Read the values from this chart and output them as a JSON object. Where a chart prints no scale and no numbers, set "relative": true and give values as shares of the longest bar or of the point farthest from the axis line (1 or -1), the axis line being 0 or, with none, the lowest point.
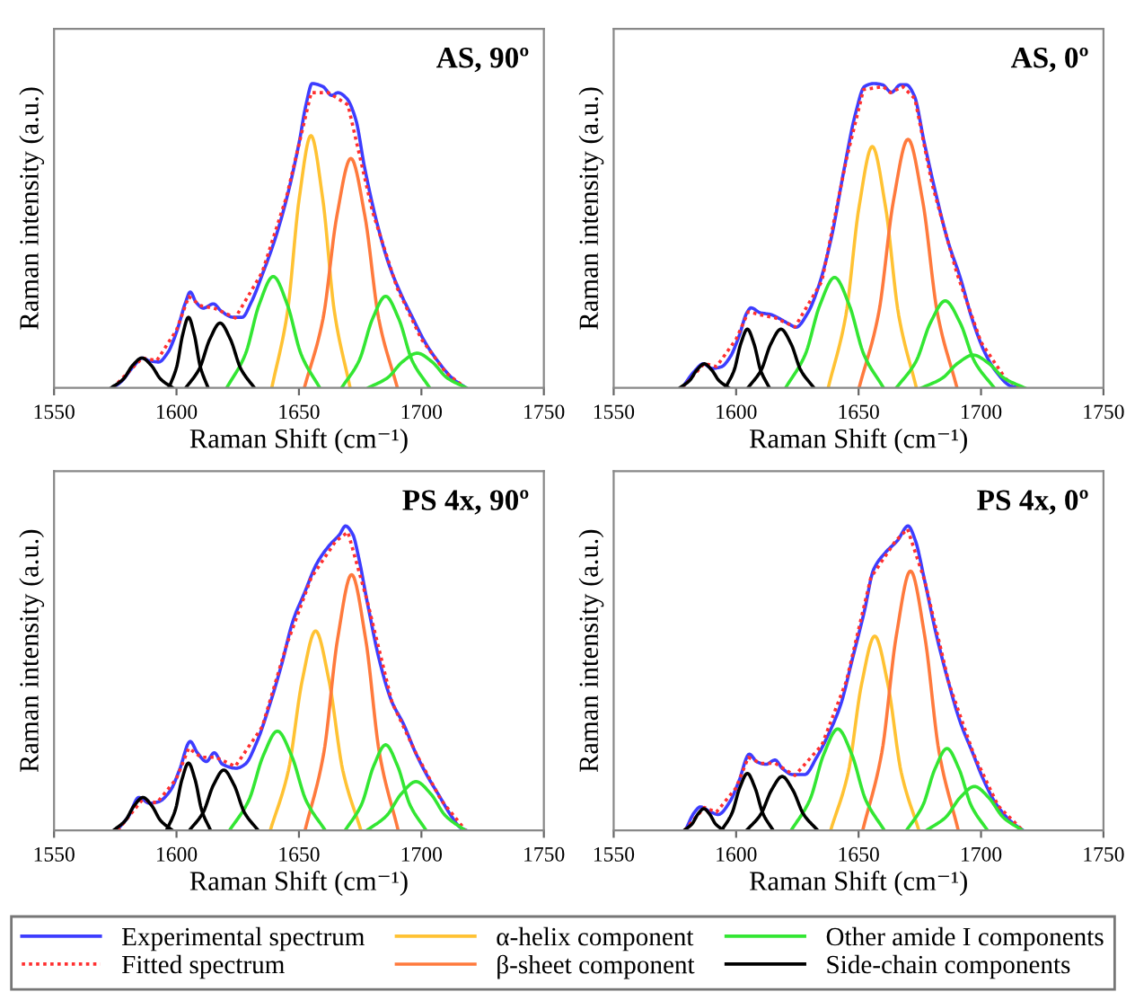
{
  "chart_data": [
    {
      "type": "line",
      "title": "AS, 90º",
      "xlabel": "Raman Shift (cm⁻¹)",
      "ylabel": "Raman intensity (a.u.)",
      "xlim": [
        1550,
        1750
      ],
      "xticks": [
        1550,
        1600,
        1650,
        1700,
        1750
      ],
      "relative": true,
      "legend": "bottom",
      "series": [
        {
          "name": "Experimental spectrum",
          "color": "#3d3dff",
          "x": [
            1573.7,
            1576.8,
            1582.9,
            1585.9,
            1589,
            1592.7,
            1596.3,
            1600,
            1603.7,
            1605.6,
            1608,
            1611,
            1615.1,
            1618.3,
            1623.2,
            1626.8,
            1630.5,
            1635.4,
            1640.2,
            1645.1,
            1650,
            1652.9,
            1655.4,
            1659.8,
            1663.4,
            1665.9,
            1669.5,
            1673.2,
            1676.8,
            1681.7,
            1686.6,
            1691.5,
            1696.3,
            1701.2,
            1706.1,
            1713.4,
            1718.3
          ],
          "values": [
            0,
            0.016,
            0.075,
            0.098,
            0.089,
            0.085,
            0.114,
            0.183,
            0.281,
            0.315,
            0.281,
            0.262,
            0.276,
            0.252,
            0.232,
            0.232,
            0.281,
            0.38,
            0.488,
            0.626,
            0.803,
            0.931,
            1,
            0.99,
            0.961,
            0.97,
            0.951,
            0.882,
            0.724,
            0.547,
            0.409,
            0.311,
            0.232,
            0.154,
            0.094,
            0.026,
            0
          ]
        },
        {
          "name": "Fitted spectrum",
          "color": "#ff3030",
          "line_style": "dotted",
          "x": [
            1574,
            1586,
            1592,
            1600,
            1605,
            1610,
            1616,
            1624,
            1635,
            1645,
            1655,
            1662,
            1670,
            1680,
            1690,
            1700,
            1710,
            1718
          ],
          "values": [
            0,
            0.098,
            0.09,
            0.19,
            0.3,
            0.27,
            0.26,
            0.23,
            0.38,
            0.63,
            0.97,
            0.97,
            0.93,
            0.58,
            0.33,
            0.16,
            0.05,
            0
          ]
        },
        {
          "name": "α-helix component",
          "color": "#ffc233",
          "x": [
            1638.9,
            1645.3,
            1650.1,
            1654.9,
            1659.7,
            1664.5,
            1670.9
          ],
          "values": [
            0,
            0.249,
            0.622,
            0.829,
            0.622,
            0.249,
            0
          ]
        },
        {
          "name": "β-sheet component",
          "color": "#ff7a3d",
          "x": [
            1652.2,
            1659.8,
            1665.5,
            1671.2,
            1676.9,
            1682.6,
            1690.2
          ],
          "values": [
            0,
            0.226,
            0.566,
            0.754,
            0.566,
            0.226,
            0
          ]
        },
        {
          "name": "Other amide I components",
          "color": "#33e633",
          "x": [
            1620.5,
            1628.1,
            1633.8,
            1639.5,
            1645.2,
            1650.9,
            1658.5
          ],
          "values": [
            0,
            0.11,
            0.275,
            0.366,
            0.275,
            0.11,
            0
          ]
        },
        {
          "color": "#33e633",
          "x": [
            1667.4,
            1674.6,
            1680,
            1685.4,
            1690.8,
            1696.2,
            1703.4
          ],
          "values": [
            0,
            0.09,
            0.226,
            0.301,
            0.226,
            0.09,
            0
          ]
        },
        {
          "color": "#33e633",
          "x": [
            1678.3,
            1686.3,
            1692.3,
            1698.3,
            1704.3,
            1710.3,
            1718.3
          ],
          "values": [
            0,
            0.034,
            0.086,
            0.114,
            0.086,
            0.034,
            0
          ]
        },
        {
          "name": "Side-chain components",
          "color": "#000000",
          "x": [
            1573.3,
            1578.3,
            1582.1,
            1585.9,
            1589.7,
            1593.5,
            1598.5
          ],
          "values": [
            0,
            0.029,
            0.074,
            0.098,
            0.074,
            0.029,
            0
          ]
        },
        {
          "color": "#000000",
          "x": [
            1596.9,
            1600.1,
            1602.5,
            1604.9,
            1607.3,
            1609.7,
            1612.9
          ],
          "values": [
            0,
            0.07,
            0.174,
            0.232,
            0.174,
            0.07,
            0
          ]
        },
        {
          "color": "#000000",
          "x": [
            1603.8,
            1609.4,
            1613.6,
            1617.8,
            1622,
            1626.2,
            1631.8
          ],
          "values": [
            0,
            0.064,
            0.16,
            0.213,
            0.16,
            0.064,
            0
          ]
        }
      ]
    },
    {
      "type": "line",
      "title": "AS, 0º",
      "xlabel": "Raman Shift (cm⁻¹)",
      "ylabel": "Raman intensity (a.u.)",
      "xlim": [
        1550,
        1750
      ],
      "xticks": [
        1550,
        1600,
        1650,
        1700,
        1750
      ],
      "relative": true,
      "legend": "bottom",
      "series": [
        {
          "name": "Experimental spectrum",
          "color": "#3d3dff",
          "x": [
            1578,
            1582.9,
            1586.6,
            1590.2,
            1593.9,
            1597.6,
            1601.2,
            1604.4,
            1606.1,
            1609.8,
            1614.1,
            1617.6,
            1622,
            1624.4,
            1629.3,
            1634.1,
            1639,
            1643.9,
            1648.8,
            1652.4,
            1656.1,
            1659.8,
            1663.4,
            1667.1,
            1669.5,
            1672.7,
            1676.8,
            1681.7,
            1686.6,
            1691.5,
            1696.3,
            1701.2,
            1706.1,
            1712.2,
            1715.9
          ],
          "values": [
            0,
            0.054,
            0.079,
            0.064,
            0.069,
            0.102,
            0.17,
            0.247,
            0.263,
            0.247,
            0.241,
            0.228,
            0.208,
            0.199,
            0.247,
            0.344,
            0.498,
            0.71,
            0.903,
            0.99,
            1,
            0.996,
            0.971,
            0.996,
            0.996,
            0.961,
            0.807,
            0.633,
            0.479,
            0.363,
            0.228,
            0.122,
            0.054,
            0.006,
            0
          ]
        },
        {
          "name": "Fitted spectrum",
          "color": "#ff3030",
          "line_style": "dotted",
          "x": [
            1578,
            1587,
            1592,
            1600,
            1605,
            1610,
            1616,
            1624,
            1635,
            1645,
            1652,
            1660,
            1663,
            1668,
            1673,
            1680,
            1690,
            1700,
            1710,
            1716
          ],
          "values": [
            0,
            0.08,
            0.07,
            0.16,
            0.25,
            0.24,
            0.23,
            0.2,
            0.35,
            0.75,
            0.98,
            0.99,
            0.97,
            0.99,
            0.95,
            0.67,
            0.38,
            0.15,
            0.03,
            0
          ]
        },
        {
          "name": "α-helix component",
          "color": "#ffc233",
          "x": [
            1637.6,
            1644.8,
            1650.2,
            1655.6,
            1661,
            1666.4,
            1673.6
          ],
          "values": [
            0,
            0.238,
            0.595,
            0.793,
            0.595,
            0.238,
            0
          ]
        },
        {
          "name": "β-sheet component",
          "color": "#ff7a3d",
          "x": [
            1650.2,
            1658.2,
            1664.2,
            1670.2,
            1676.2,
            1682.2,
            1690.2
          ],
          "values": [
            0,
            0.245,
            0.613,
            0.817,
            0.613,
            0.245,
            0
          ]
        },
        {
          "name": "Other amide I components",
          "color": "#33e633",
          "x": [
            1620.2,
            1628.2,
            1634.2,
            1640.2,
            1646.2,
            1652.2,
            1660.2
          ],
          "values": [
            0,
            0.109,
            0.272,
            0.363,
            0.272,
            0.109,
            0
          ]
        },
        {
          "color": "#33e633",
          "x": [
            1665.4,
            1673.4,
            1679.4,
            1685.4,
            1691.4,
            1697.4,
            1705.4
          ],
          "values": [
            0,
            0.086,
            0.215,
            0.286,
            0.215,
            0.086,
            0
          ]
        },
        {
          "color": "#33e633",
          "x": [
            1675.8,
            1684.2,
            1690.5,
            1696.8,
            1703.1,
            1709.4,
            1717.8
          ],
          "values": [
            0,
            0.032,
            0.081,
            0.108,
            0.081,
            0.032,
            0
          ]
        },
        {
          "name": "Side-chain components",
          "color": "#000000",
          "x": [
            1577,
            1581,
            1584,
            1587,
            1590,
            1593,
            1597
          ],
          "values": [
            0,
            0.024,
            0.059,
            0.079,
            0.059,
            0.024,
            0
          ]
        },
        {
          "color": "#000000",
          "x": [
            1595.6,
            1599.2,
            1601.9,
            1604.6,
            1607.3,
            1610,
            1613.6
          ],
          "values": [
            0,
            0.058,
            0.145,
            0.193,
            0.145,
            0.058,
            0
          ]
        },
        {
          "color": "#000000",
          "x": [
            1604.8,
            1610.2,
            1614.2,
            1618.3,
            1622.4,
            1626.4,
            1631.8
          ],
          "values": [
            0,
            0.058,
            0.145,
            0.193,
            0.145,
            0.058,
            0
          ]
        }
      ]
    },
    {
      "type": "line",
      "title": "PS 4x, 90º",
      "xlabel": "Raman Shift (cm⁻¹)",
      "ylabel": "Raman intensity (a.u.)",
      "xlim": [
        1550,
        1750
      ],
      "xticks": [
        1550,
        1600,
        1650,
        1700,
        1750
      ],
      "relative": true,
      "legend": "bottom",
      "series": [
        {
          "name": "Experimental spectrum",
          "color": "#3d3dff",
          "x": [
            1575.6,
            1580.5,
            1584.6,
            1589,
            1592.7,
            1597.6,
            1601.2,
            1605.6,
            1608.5,
            1612.2,
            1615.4,
            1618.8,
            1624.4,
            1628,
            1632.9,
            1637.8,
            1642.7,
            1647.6,
            1652.4,
            1657.3,
            1662.2,
            1666.6,
            1669,
            1672,
            1674.4,
            1678,
            1682.9,
            1687.8,
            1692.7,
            1697.6,
            1702.4,
            1707.3,
            1712.2,
            1715.9,
            1718.3
          ],
          "values": [
            0,
            0.047,
            0.108,
            0.089,
            0.094,
            0.132,
            0.198,
            0.292,
            0.255,
            0.226,
            0.255,
            0.217,
            0.204,
            0.217,
            0.292,
            0.406,
            0.538,
            0.689,
            0.783,
            0.877,
            0.934,
            0.972,
            1,
            0.972,
            0.896,
            0.745,
            0.557,
            0.425,
            0.349,
            0.255,
            0.179,
            0.113,
            0.047,
            0.009,
            0
          ]
        },
        {
          "name": "Fitted spectrum",
          "color": "#ff3030",
          "line_style": "dotted",
          "x": [
            1576,
            1586,
            1592,
            1600,
            1605,
            1610,
            1616,
            1624,
            1635,
            1645,
            1655,
            1665,
            1670,
            1678,
            1688,
            1698,
            1708,
            1718
          ],
          "values": [
            0,
            0.1,
            0.09,
            0.17,
            0.27,
            0.24,
            0.24,
            0.21,
            0.34,
            0.61,
            0.83,
            0.95,
            0.98,
            0.75,
            0.42,
            0.25,
            0.1,
            0
          ]
        },
        {
          "name": "α-helix component",
          "color": "#ffc233",
          "x": [
            1638.3,
            1645.7,
            1651.3,
            1656.8,
            1662.3,
            1667.9,
            1675.3
          ],
          "values": [
            0,
            0.197,
            0.491,
            0.655,
            0.491,
            0.197,
            0
          ]
        },
        {
          "name": "β-sheet component",
          "color": "#ff7a3d",
          "x": [
            1652.5,
            1660.1,
            1665.8,
            1671.5,
            1677.2,
            1682.9,
            1690.5
          ],
          "values": [
            0,
            0.252,
            0.63,
            0.84,
            0.63,
            0.252,
            0
          ]
        },
        {
          "name": "Other amide I components",
          "color": "#33e633",
          "x": [
            1621.7,
            1629.5,
            1635.4,
            1641.2,
            1647,
            1652.9,
            1660.7
          ],
          "values": [
            0,
            0.098,
            0.245,
            0.326,
            0.245,
            0.098,
            0
          ]
        },
        {
          "color": "#33e633",
          "x": [
            1668.9,
            1675.5,
            1680.5,
            1685.4,
            1690.3,
            1695.3,
            1701.9
          ],
          "values": [
            0,
            0.084,
            0.211,
            0.281,
            0.211,
            0.084,
            0
          ]
        },
        {
          "color": "#33e633",
          "x": [
            1677.8,
            1685.8,
            1691.8,
            1697.8,
            1703.8,
            1709.8,
            1717.8
          ],
          "values": [
            0,
            0.048,
            0.12,
            0.16,
            0.12,
            0.048,
            0
          ]
        },
        {
          "name": "Side-chain components",
          "color": "#000000",
          "x": [
            1574.3,
            1579.1,
            1582.7,
            1586.3,
            1589.9,
            1593.5,
            1598.3
          ],
          "values": [
            0,
            0.032,
            0.081,
            0.108,
            0.081,
            0.032,
            0
          ]
        },
        {
          "color": "#000000",
          "x": [
            1595.9,
            1599.5,
            1602.2,
            1604.9,
            1607.6,
            1610.3,
            1613.9
          ],
          "values": [
            0,
            0.066,
            0.166,
            0.221,
            0.166,
            0.066,
            0
          ]
        },
        {
          "color": "#000000",
          "x": [
            1605.3,
            1610.9,
            1615.1,
            1619.3,
            1623.5,
            1627.7,
            1633.3
          ],
          "values": [
            0,
            0.059,
            0.149,
            0.198,
            0.149,
            0.059,
            0
          ]
        }
      ]
    },
    {
      "type": "line",
      "title": "PS 4x, 0º",
      "xlabel": "Raman Shift (cm⁻¹)",
      "ylabel": "Raman intensity (a.u.)",
      "xlim": [
        1550,
        1750
      ],
      "xticks": [
        1550,
        1600,
        1650,
        1700,
        1750
      ],
      "relative": true,
      "legend": "bottom",
      "series": [
        {
          "name": "Experimental spectrum",
          "color": "#3d3dff",
          "x": [
            1579.3,
            1582.9,
            1585.4,
            1589,
            1592.7,
            1597.6,
            1601.2,
            1605.4,
            1608.5,
            1612.2,
            1615.9,
            1619,
            1623.2,
            1628,
            1632.9,
            1637.8,
            1642.7,
            1647.6,
            1652.4,
            1656.1,
            1661,
            1665.9,
            1670.2,
            1673.2,
            1676.8,
            1681.7,
            1686.6,
            1691.5,
            1696.3,
            1701.2,
            1706.1,
            1712.2,
            1717.1
          ],
          "values": [
            0,
            0.058,
            0.077,
            0.063,
            0.052,
            0.096,
            0.163,
            0.25,
            0.225,
            0.217,
            0.231,
            0.202,
            0.183,
            0.183,
            0.24,
            0.317,
            0.413,
            0.567,
            0.721,
            0.856,
            0.913,
            0.952,
            1,
            0.952,
            0.827,
            0.644,
            0.49,
            0.356,
            0.26,
            0.163,
            0.087,
            0.029,
            0
          ]
        },
        {
          "name": "Fitted spectrum",
          "color": "#ff3030",
          "line_style": "dotted",
          "x": [
            1579,
            1587,
            1592,
            1600,
            1605,
            1610,
            1616,
            1624,
            1635,
            1645,
            1655,
            1665,
            1670,
            1677,
            1687,
            1697,
            1707,
            1717
          ],
          "values": [
            0,
            0.075,
            0.06,
            0.14,
            0.24,
            0.22,
            0.22,
            0.18,
            0.28,
            0.49,
            0.83,
            0.95,
            0.99,
            0.82,
            0.48,
            0.25,
            0.08,
            0
          ]
        },
        {
          "name": "α-helix component",
          "color": "#ffc233",
          "x": [
            1638.6,
            1645.8,
            1651.2,
            1656.6,
            1662,
            1667.4,
            1674.6
          ],
          "values": [
            0,
            0.191,
            0.479,
            0.638,
            0.479,
            0.191,
            0
          ]
        },
        {
          "name": "β-sheet component",
          "color": "#ff7a3d",
          "x": [
            1651.7,
            1659.5,
            1665.4,
            1671.2,
            1677,
            1682.9,
            1690.7
          ],
          "values": [
            0,
            0.256,
            0.639,
            0.852,
            0.639,
            0.256,
            0
          ]
        },
        {
          "name": "Other amide I components",
          "color": "#33e633",
          "x": [
            1622.5,
            1630.1,
            1635.8,
            1641.5,
            1647.2,
            1652.9,
            1660.5
          ],
          "values": [
            0,
            0.1,
            0.25,
            0.333,
            0.25,
            0.1,
            0
          ]
        },
        {
          "color": "#33e633",
          "x": [
            1669.6,
            1676.2,
            1681.2,
            1686.1,
            1691,
            1696,
            1702.6
          ],
          "values": [
            0,
            0.081,
            0.202,
            0.269,
            0.202,
            0.081,
            0
          ]
        },
        {
          "color": "#33e633",
          "x": [
            1677.8,
            1685.6,
            1691.5,
            1697.3,
            1703.1,
            1709,
            1716.8
          ],
          "values": [
            0,
            0.043,
            0.108,
            0.144,
            0.108,
            0.043,
            0
          ]
        },
        {
          "name": "Side-chain components",
          "color": "#000000",
          "x": [
            1578.8,
            1582,
            1584.4,
            1586.8,
            1589.2,
            1591.6,
            1594.8
          ],
          "values": [
            0,
            0.021,
            0.053,
            0.071,
            0.053,
            0.021,
            0
          ]
        },
        {
          "color": "#000000",
          "x": [
            1594.1,
            1598.3,
            1601.5,
            1604.6,
            1607.7,
            1610.9,
            1615.1
          ],
          "values": [
            0,
            0.056,
            0.14,
            0.187,
            0.14,
            0.056,
            0
          ]
        },
        {
          "color": "#000000",
          "x": [
            1604.3,
            1610.1,
            1614.5,
            1618.8,
            1623.1,
            1627.5,
            1633.3
          ],
          "values": [
            0,
            0.053,
            0.133,
            0.177,
            0.133,
            0.053,
            0
          ]
        }
      ]
    }
  ]
}
